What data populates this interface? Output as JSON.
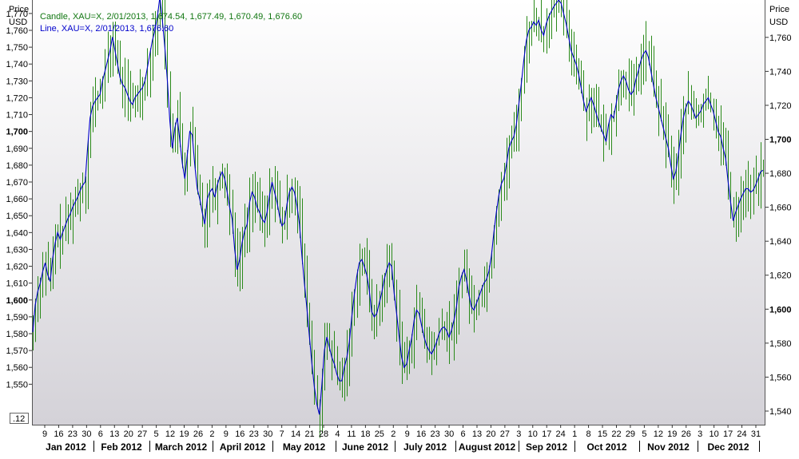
{
  "chart_data": {
    "type": "line",
    "legend": {
      "placement": "top-left",
      "candle_label": "Candle, XAU=X, 2/01/2013, 1,674.54, 1,677.49, 1,670.49, 1,676.60",
      "line_label": "Line, XAU=X, 2/01/2013, 1,676.60"
    },
    "colors": {
      "candle": "#2a8a1a",
      "line": "#0000c8",
      "legend_candle": "#117711",
      "legend_line": "#0000cc"
    },
    "left_axis": {
      "header": [
        "Price",
        "USD"
      ],
      "ylim": [
        1526,
        1778
      ],
      "ticks": [
        1550,
        1560,
        1570,
        1580,
        1590,
        1600,
        1610,
        1620,
        1630,
        1640,
        1650,
        1660,
        1670,
        1680,
        1690,
        1700,
        1710,
        1720,
        1730,
        1740,
        1750,
        1760,
        1770
      ],
      "tick_labels": [
        "1,550",
        "1,560",
        "1,570",
        "1,580",
        "1,590",
        "1,600",
        "1,610",
        "1,620",
        "1,630",
        "1,640",
        "1,650",
        "1,660",
        "1,670",
        "1,680",
        "1,690",
        "1,700",
        "1,710",
        "1,720",
        "1,730",
        "1,740",
        "1,750",
        "1,760",
        "1,770"
      ],
      "bold_labels": [
        "1,600",
        "1,700"
      ]
    },
    "right_axis": {
      "header": [
        "Price",
        "USD"
      ],
      "ylim": [
        1532,
        1782
      ],
      "ticks": [
        1540,
        1560,
        1580,
        1600,
        1620,
        1640,
        1660,
        1680,
        1700,
        1720,
        1740,
        1760
      ],
      "tick_labels": [
        "1,540",
        "1,560",
        "1,580",
        "1,600",
        "1,620",
        "1,640",
        "1,660",
        "1,680",
        "1,700",
        "1,720",
        "1,740",
        "1,760"
      ],
      "bold_labels": [
        "1,600",
        "1,700"
      ]
    },
    "corner_label": ".12",
    "x_day_labels": [
      "9",
      "16",
      "23",
      "30",
      "6",
      "13",
      "20",
      "27",
      "5",
      "12",
      "19",
      "26",
      "2",
      "9",
      "16",
      "23",
      "30",
      "7",
      "14",
      "21",
      "28",
      "4",
      "11",
      "18",
      "25",
      "2",
      "9",
      "16",
      "23",
      "30",
      "6",
      "13",
      "20",
      "27",
      "3",
      "10",
      "17",
      "24",
      "1",
      "8",
      "15",
      "22",
      "29",
      "5",
      "12",
      "19",
      "26",
      "3",
      "10",
      "17",
      "24",
      "31"
    ],
    "x_month_labels": [
      "Jan 2012",
      "Feb 2012",
      "March 2012",
      "April 2012",
      "May 2012",
      "June 2012",
      "July 2012",
      "August 2012",
      "Sep 2012",
      "Oct 2012",
      "Nov 2012",
      "Dec 2012"
    ],
    "series_close": [
      1581,
      1597,
      1605,
      1610,
      1617,
      1622,
      1615,
      1611,
      1625,
      1634,
      1640,
      1636,
      1640,
      1644,
      1648,
      1651,
      1655,
      1658,
      1661,
      1665,
      1668,
      1670,
      1690,
      1708,
      1715,
      1718,
      1720,
      1722,
      1730,
      1736,
      1742,
      1748,
      1756,
      1748,
      1740,
      1732,
      1728,
      1726,
      1722,
      1718,
      1716,
      1720,
      1722,
      1724,
      1726,
      1730,
      1738,
      1746,
      1754,
      1760,
      1768,
      1780,
      1766,
      1750,
      1730,
      1706,
      1690,
      1702,
      1708,
      1695,
      1681,
      1672,
      1686,
      1700,
      1698,
      1680,
      1666,
      1660,
      1652,
      1645,
      1660,
      1664,
      1666,
      1661,
      1668,
      1673,
      1676,
      1672,
      1664,
      1655,
      1648,
      1630,
      1618,
      1624,
      1634,
      1641,
      1645,
      1658,
      1664,
      1661,
      1655,
      1652,
      1648,
      1646,
      1652,
      1662,
      1670,
      1664,
      1658,
      1650,
      1644,
      1646,
      1657,
      1664,
      1667,
      1664,
      1656,
      1645,
      1626,
      1610,
      1595,
      1578,
      1562,
      1548,
      1538,
      1532,
      1550,
      1570,
      1578,
      1572,
      1566,
      1562,
      1556,
      1552,
      1552,
      1560,
      1566,
      1575,
      1590,
      1603,
      1614,
      1622,
      1624,
      1620,
      1615,
      1606,
      1593,
      1590,
      1592,
      1598,
      1604,
      1612,
      1618,
      1622,
      1620,
      1604,
      1592,
      1578,
      1566,
      1560,
      1562,
      1570,
      1577,
      1588,
      1594,
      1592,
      1585,
      1578,
      1573,
      1570,
      1568,
      1571,
      1575,
      1580,
      1583,
      1584,
      1582,
      1578,
      1582,
      1588,
      1596,
      1608,
      1614,
      1618,
      1612,
      1603,
      1596,
      1594,
      1598,
      1602,
      1606,
      1610,
      1612,
      1617,
      1626,
      1640,
      1652,
      1662,
      1669,
      1672,
      1680,
      1690,
      1694,
      1697,
      1704,
      1716,
      1728,
      1742,
      1754,
      1760,
      1762,
      1765,
      1763,
      1766,
      1760,
      1757,
      1764,
      1768,
      1771,
      1774,
      1776,
      1778,
      1776,
      1770,
      1764,
      1756,
      1748,
      1744,
      1740,
      1734,
      1726,
      1718,
      1712,
      1716,
      1720,
      1716,
      1711,
      1706,
      1702,
      1698,
      1694,
      1704,
      1710,
      1708,
      1716,
      1725,
      1730,
      1733,
      1730,
      1725,
      1722,
      1724,
      1731,
      1736,
      1742,
      1746,
      1748,
      1744,
      1736,
      1728,
      1720,
      1714,
      1708,
      1702,
      1696,
      1690,
      1680,
      1672,
      1676,
      1686,
      1698,
      1708,
      1714,
      1718,
      1716,
      1712,
      1708,
      1710,
      1712,
      1716,
      1718,
      1720,
      1716,
      1712,
      1706,
      1700,
      1697,
      1690,
      1684,
      1670,
      1658,
      1647,
      1652,
      1656,
      1660,
      1663,
      1666,
      1666,
      1664,
      1665,
      1668,
      1672,
      1676,
      1677
    ]
  }
}
